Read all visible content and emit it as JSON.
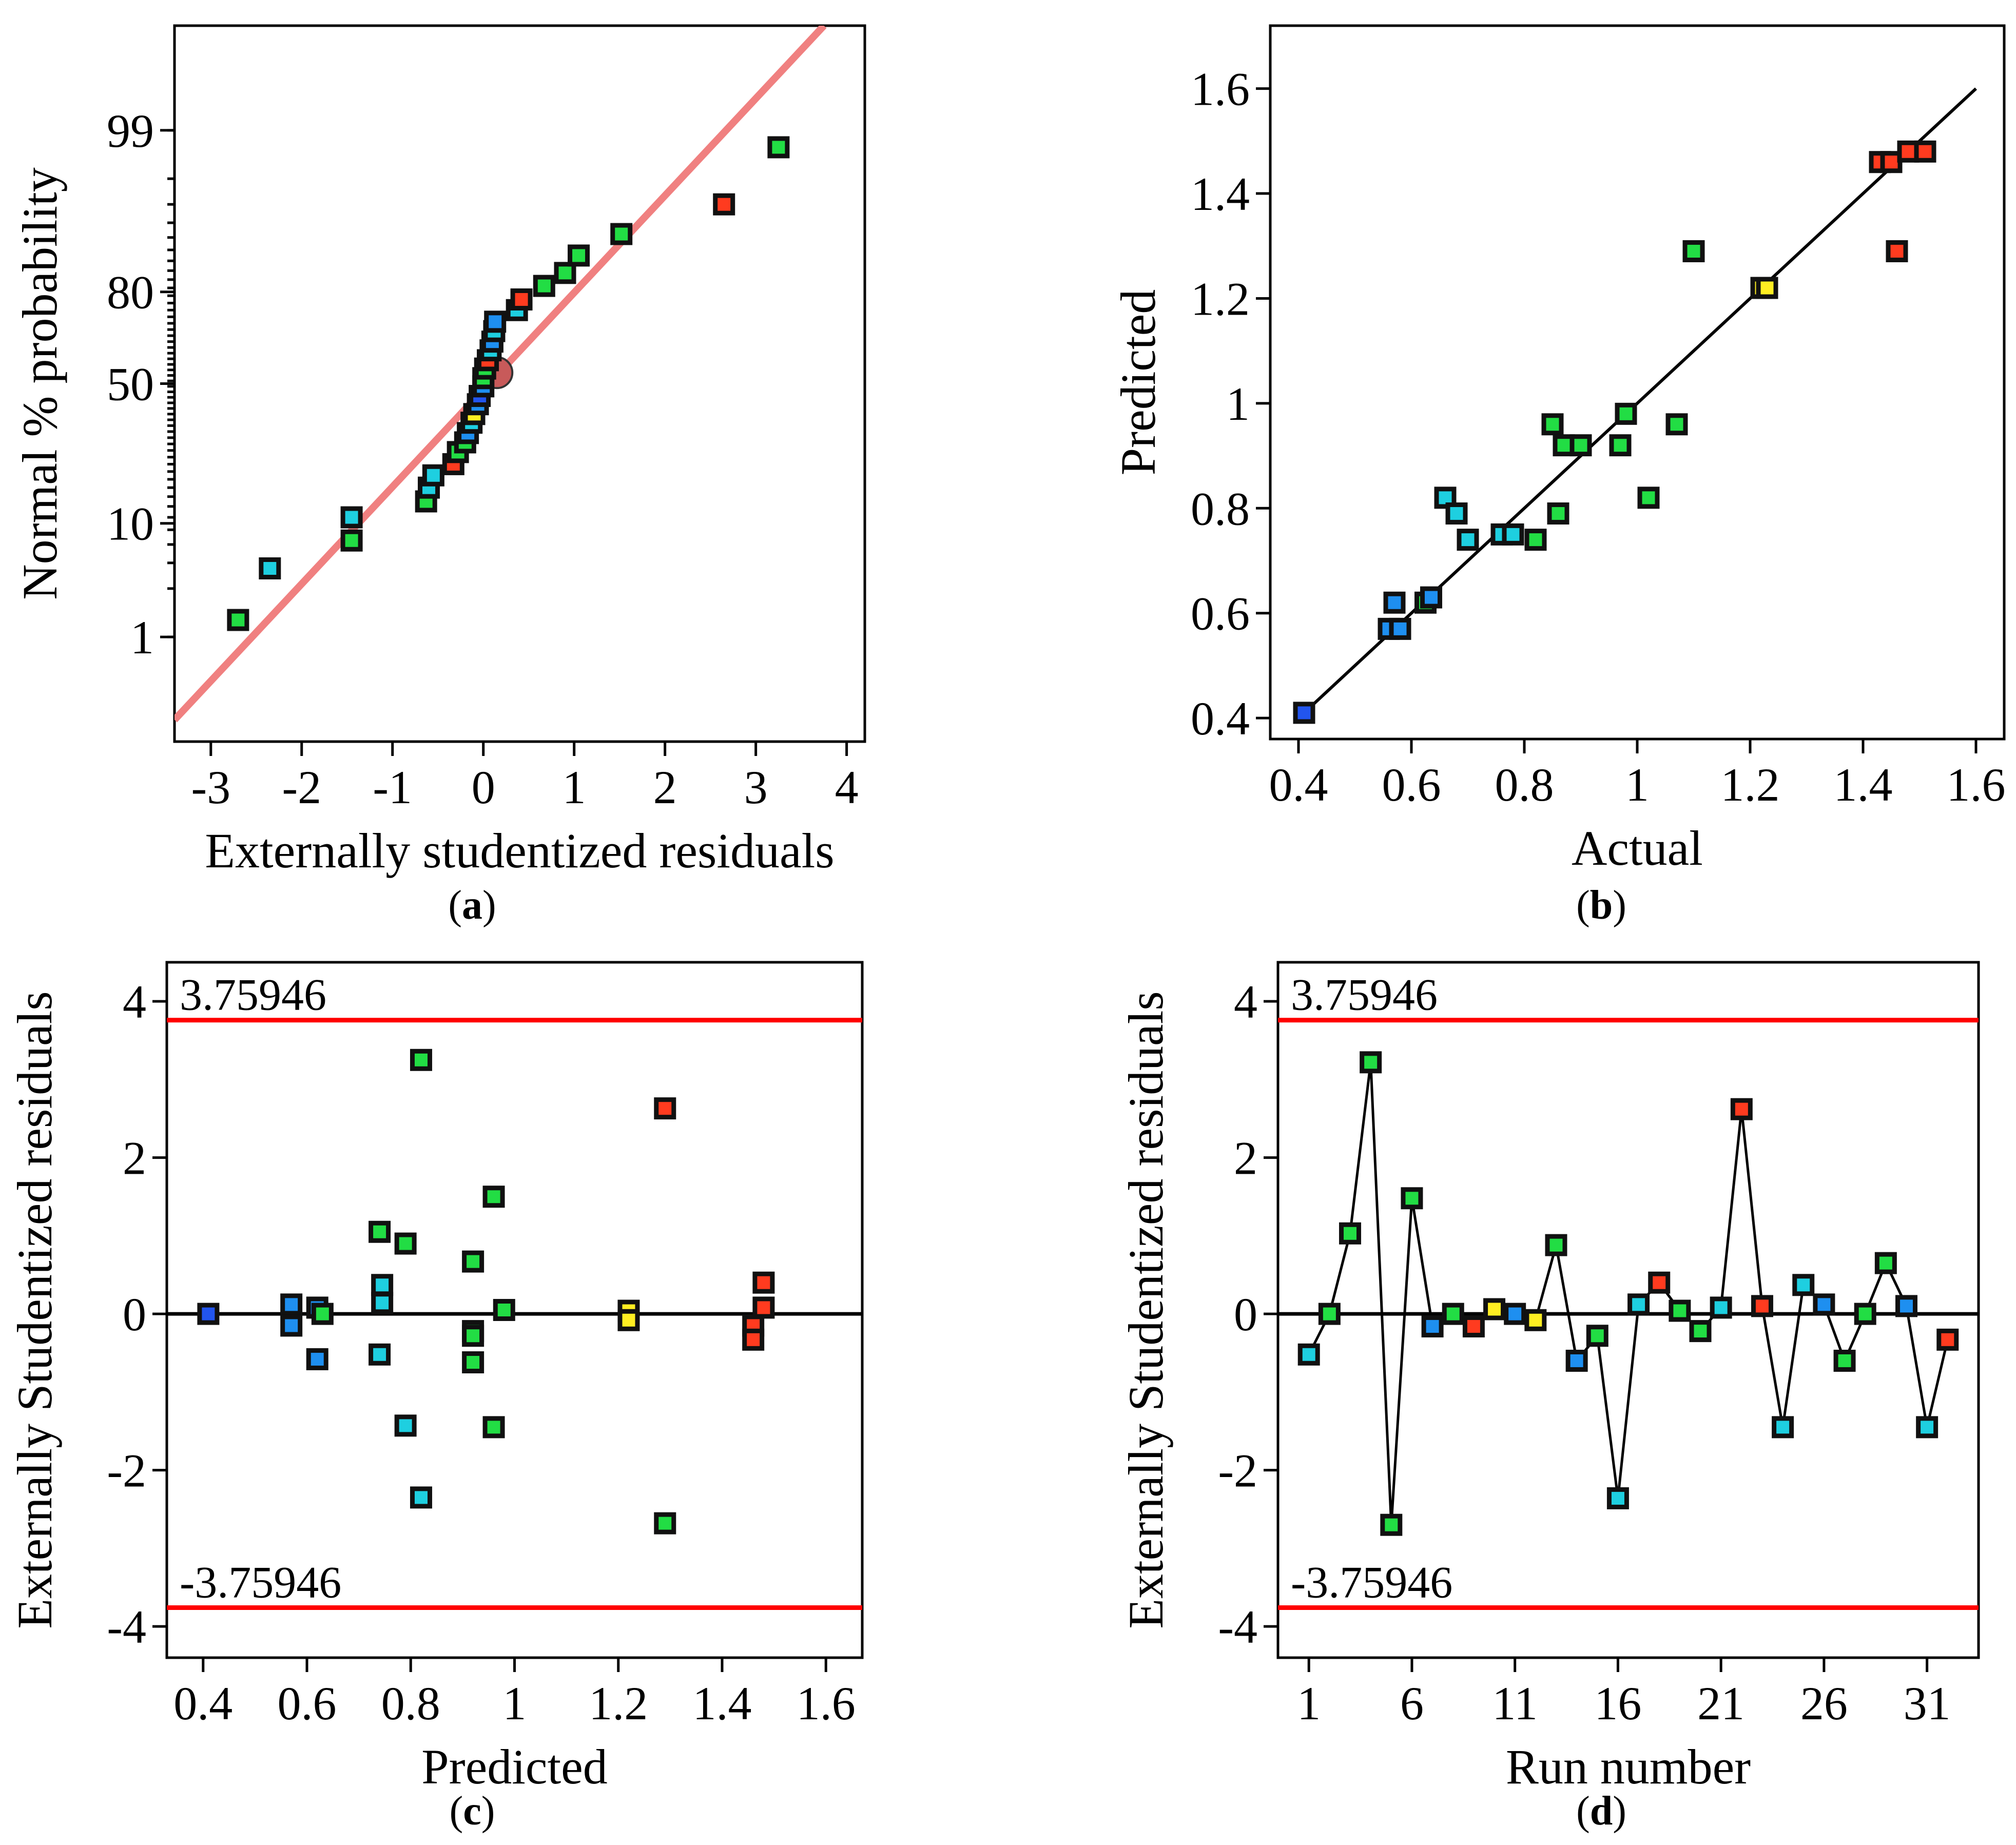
{
  "colors": {
    "ref_line_a": "#f08080",
    "limit_line": "#ff0000",
    "fit_line": "#000000"
  },
  "chart_data": [
    {
      "id": "a",
      "type": "scatter",
      "caption_letter": "a",
      "xlabel": "Externally studentized residuals",
      "ylabel": "Normal % probability",
      "xlim": [
        -3.4,
        4.2
      ],
      "xticks": [
        -3,
        -2,
        -1,
        0,
        1,
        2,
        3,
        4
      ],
      "yticks": [
        1,
        10,
        50,
        80,
        99
      ],
      "reference_line": [
        [
          -3.4,
          0.1
        ],
        [
          3.75,
          99.95
        ]
      ],
      "points": [
        {
          "x": -2.7,
          "y": 1.5,
          "c": "#22dd44"
        },
        {
          "x": -2.35,
          "y": 4.5,
          "c": "#1ecfe0"
        },
        {
          "x": -1.45,
          "y": 7.5,
          "c": "#22dd44"
        },
        {
          "x": -1.45,
          "y": 11.0,
          "c": "#1ecfe0"
        },
        {
          "x": -0.63,
          "y": 14.0,
          "c": "#22dd44"
        },
        {
          "x": -0.6,
          "y": 17.0,
          "c": "#1ecfe0"
        },
        {
          "x": -0.55,
          "y": 20.0,
          "c": "#1ecfe0"
        },
        {
          "x": -0.33,
          "y": 23.0,
          "c": "#ff3b1f"
        },
        {
          "x": -0.28,
          "y": 26.5,
          "c": "#22dd44"
        },
        {
          "x": -0.2,
          "y": 29.5,
          "c": "#22dd44"
        },
        {
          "x": -0.17,
          "y": 32.5,
          "c": "#1e8ff0"
        },
        {
          "x": -0.13,
          "y": 36.0,
          "c": "#1ecfe0"
        },
        {
          "x": -0.1,
          "y": 39.0,
          "c": "#ffee22"
        },
        {
          "x": -0.06,
          "y": 42.5,
          "c": "#1e8ff0"
        },
        {
          "x": -0.04,
          "y": 45.5,
          "c": "#2255ee"
        },
        {
          "x": 0.0,
          "y": 49.0,
          "c": "#1e8ff0"
        },
        {
          "x": 0.0,
          "y": 52.0,
          "c": "#22dd44"
        },
        {
          "x": 0.02,
          "y": 55.5,
          "c": "#22dd44"
        },
        {
          "x": 0.05,
          "y": 58.5,
          "c": "#ff3b1f"
        },
        {
          "x": 0.08,
          "y": 62.0,
          "c": "#1ecfe0"
        },
        {
          "x": 0.1,
          "y": 65.0,
          "c": "#1e8ff0"
        },
        {
          "x": 0.12,
          "y": 68.5,
          "c": "#1ecfe0"
        },
        {
          "x": 0.13,
          "y": 71.5,
          "c": "#1e8ff0"
        },
        {
          "x": 0.37,
          "y": 75.0,
          "c": "#1ecfe0"
        },
        {
          "x": 0.42,
          "y": 78.0,
          "c": "#ff3b1f"
        },
        {
          "x": 0.67,
          "y": 81.5,
          "c": "#22dd44"
        },
        {
          "x": 0.9,
          "y": 84.5,
          "c": "#22dd44"
        },
        {
          "x": 1.05,
          "y": 88.0,
          "c": "#22dd44"
        },
        {
          "x": 1.52,
          "y": 91.5,
          "c": "#22dd44"
        },
        {
          "x": 2.65,
          "y": 95.0,
          "c": "#ff3b1f"
        },
        {
          "x": 3.25,
          "y": 98.5,
          "c": "#22dd44"
        }
      ]
    },
    {
      "id": "b",
      "type": "scatter",
      "caption_letter": "b",
      "xlabel": "Actual",
      "ylabel": "Predicted",
      "xlim": [
        0.35,
        1.65
      ],
      "ylim": [
        0.36,
        1.72
      ],
      "xticks": [
        "0.4",
        "0.6",
        "0.8",
        "1",
        "1.2",
        "1.4",
        "1.6"
      ],
      "yticks": [
        "0.4",
        "0.6",
        "0.8",
        "1",
        "1.2",
        "1.4",
        "1.6"
      ],
      "fit_line": [
        [
          0.41,
          0.41
        ],
        [
          1.6,
          1.6
        ]
      ],
      "points": [
        {
          "x": 0.41,
          "y": 0.41,
          "c": "#2255ee"
        },
        {
          "x": 0.56,
          "y": 0.57,
          "c": "#1e8ff0"
        },
        {
          "x": 0.58,
          "y": 0.57,
          "c": "#1e8ff0"
        },
        {
          "x": 0.57,
          "y": 0.62,
          "c": "#1e8ff0"
        },
        {
          "x": 0.625,
          "y": 0.62,
          "c": "#22dd44"
        },
        {
          "x": 0.635,
          "y": 0.63,
          "c": "#1e8ff0"
        },
        {
          "x": 0.66,
          "y": 0.82,
          "c": "#1ecfe0"
        },
        {
          "x": 0.68,
          "y": 0.79,
          "c": "#1ecfe0"
        },
        {
          "x": 0.7,
          "y": 0.74,
          "c": "#1ecfe0"
        },
        {
          "x": 0.76,
          "y": 0.75,
          "c": "#1ecfe0"
        },
        {
          "x": 0.78,
          "y": 0.75,
          "c": "#1ecfe0"
        },
        {
          "x": 0.82,
          "y": 0.74,
          "c": "#22dd44"
        },
        {
          "x": 0.86,
          "y": 0.79,
          "c": "#22dd44"
        },
        {
          "x": 0.85,
          "y": 0.96,
          "c": "#22dd44"
        },
        {
          "x": 0.87,
          "y": 0.92,
          "c": "#22dd44"
        },
        {
          "x": 0.9,
          "y": 0.92,
          "c": "#22dd44"
        },
        {
          "x": 0.97,
          "y": 0.92,
          "c": "#22dd44"
        },
        {
          "x": 0.98,
          "y": 0.98,
          "c": "#22dd44"
        },
        {
          "x": 1.02,
          "y": 0.82,
          "c": "#22dd44"
        },
        {
          "x": 1.07,
          "y": 0.96,
          "c": "#22dd44"
        },
        {
          "x": 1.1,
          "y": 1.29,
          "c": "#22dd44"
        },
        {
          "x": 1.22,
          "y": 1.22,
          "c": "#ffee22"
        },
        {
          "x": 1.23,
          "y": 1.22,
          "c": "#ffee22"
        },
        {
          "x": 1.43,
          "y": 1.46,
          "c": "#ff3b1f"
        },
        {
          "x": 1.45,
          "y": 1.46,
          "c": "#ff3b1f"
        },
        {
          "x": 1.46,
          "y": 1.29,
          "c": "#ff3b1f"
        },
        {
          "x": 1.48,
          "y": 1.48,
          "c": "#ff3b1f"
        },
        {
          "x": 1.51,
          "y": 1.48,
          "c": "#ff3b1f"
        }
      ]
    },
    {
      "id": "c",
      "type": "scatter",
      "caption_letter": "c",
      "xlabel": "Predicted",
      "ylabel": "Externally Studentized residuals",
      "xlim": [
        0.33,
        1.67
      ],
      "ylim": [
        -4.4,
        4.5
      ],
      "xticks": [
        "0.4",
        "0.6",
        "0.8",
        "1",
        "1.2",
        "1.4",
        "1.6"
      ],
      "yticks": [
        "-4",
        "-2",
        "0",
        "2",
        "4"
      ],
      "upper_limit": 3.75946,
      "lower_limit": -3.75946,
      "upper_label": "3.75946",
      "lower_label": "-3.75946",
      "points": [
        {
          "x": 0.41,
          "y": 0.0,
          "c": "#2255ee"
        },
        {
          "x": 0.57,
          "y": 0.12,
          "c": "#1e8ff0"
        },
        {
          "x": 0.57,
          "y": -0.15,
          "c": "#1e8ff0"
        },
        {
          "x": 0.62,
          "y": 0.08,
          "c": "#1e8ff0"
        },
        {
          "x": 0.63,
          "y": 0.0,
          "c": "#22dd44"
        },
        {
          "x": 0.62,
          "y": -0.58,
          "c": "#1e8ff0"
        },
        {
          "x": 0.74,
          "y": 1.05,
          "c": "#22dd44"
        },
        {
          "x": 0.745,
          "y": 0.37,
          "c": "#1ecfe0"
        },
        {
          "x": 0.745,
          "y": 0.14,
          "c": "#1ecfe0"
        },
        {
          "x": 0.74,
          "y": -0.52,
          "c": "#1ecfe0"
        },
        {
          "x": 0.79,
          "y": 0.9,
          "c": "#22dd44"
        },
        {
          "x": 0.79,
          "y": -1.43,
          "c": "#1ecfe0"
        },
        {
          "x": 0.82,
          "y": 3.25,
          "c": "#22dd44"
        },
        {
          "x": 0.82,
          "y": -2.35,
          "c": "#1ecfe0"
        },
        {
          "x": 0.92,
          "y": 0.67,
          "c": "#22dd44"
        },
        {
          "x": 0.92,
          "y": -0.22,
          "c": "#22dd44"
        },
        {
          "x": 0.92,
          "y": -0.28,
          "c": "#22dd44"
        },
        {
          "x": 0.92,
          "y": -0.62,
          "c": "#22dd44"
        },
        {
          "x": 0.96,
          "y": 1.5,
          "c": "#22dd44"
        },
        {
          "x": 0.96,
          "y": -1.45,
          "c": "#22dd44"
        },
        {
          "x": 0.98,
          "y": 0.05,
          "c": "#22dd44"
        },
        {
          "x": 1.22,
          "y": 0.04,
          "c": "#ffee22"
        },
        {
          "x": 1.22,
          "y": -0.08,
          "c": "#ffee22"
        },
        {
          "x": 1.29,
          "y": 2.63,
          "c": "#ff3b1f"
        },
        {
          "x": 1.29,
          "y": -2.68,
          "c": "#22dd44"
        },
        {
          "x": 1.46,
          "y": -0.15,
          "c": "#ff3b1f"
        },
        {
          "x": 1.46,
          "y": -0.33,
          "c": "#ff3b1f"
        },
        {
          "x": 1.48,
          "y": 0.4,
          "c": "#ff3b1f"
        },
        {
          "x": 1.48,
          "y": 0.08,
          "c": "#ff3b1f"
        }
      ]
    },
    {
      "id": "d",
      "type": "line",
      "caption_letter": "d",
      "xlabel": "Run number",
      "ylabel": "Externally Studentized residuals",
      "xlim": [
        -0.5,
        33.5
      ],
      "ylim": [
        -4.4,
        4.5
      ],
      "xticks": [
        "1",
        "6",
        "11",
        "16",
        "21",
        "26",
        "31"
      ],
      "yticks": [
        "-4",
        "-2",
        "0",
        "2",
        "4"
      ],
      "upper_limit": 3.75946,
      "lower_limit": -3.75946,
      "upper_label": "3.75946",
      "lower_label": "-3.75946",
      "points": [
        {
          "x": 1,
          "y": -0.52,
          "c": "#1ecfe0"
        },
        {
          "x": 2,
          "y": 0.0,
          "c": "#22dd44"
        },
        {
          "x": 3,
          "y": 1.03,
          "c": "#22dd44"
        },
        {
          "x": 4,
          "y": 3.22,
          "c": "#22dd44"
        },
        {
          "x": 5,
          "y": -2.7,
          "c": "#22dd44"
        },
        {
          "x": 6,
          "y": 1.48,
          "c": "#22dd44"
        },
        {
          "x": 7,
          "y": -0.16,
          "c": "#1e8ff0"
        },
        {
          "x": 8,
          "y": 0.0,
          "c": "#22dd44"
        },
        {
          "x": 9,
          "y": -0.16,
          "c": "#ff3b1f"
        },
        {
          "x": 10,
          "y": 0.06,
          "c": "#ffee22"
        },
        {
          "x": 11,
          "y": 0.0,
          "c": "#1e8ff0"
        },
        {
          "x": 12,
          "y": -0.08,
          "c": "#ffee22"
        },
        {
          "x": 13,
          "y": 0.88,
          "c": "#22dd44"
        },
        {
          "x": 14,
          "y": -0.6,
          "c": "#1e8ff0"
        },
        {
          "x": 15,
          "y": -0.28,
          "c": "#22dd44"
        },
        {
          "x": 16,
          "y": -2.36,
          "c": "#1ecfe0"
        },
        {
          "x": 17,
          "y": 0.12,
          "c": "#1ecfe0"
        },
        {
          "x": 18,
          "y": 0.4,
          "c": "#ff3b1f"
        },
        {
          "x": 19,
          "y": 0.04,
          "c": "#22dd44"
        },
        {
          "x": 20,
          "y": -0.22,
          "c": "#22dd44"
        },
        {
          "x": 21,
          "y": 0.08,
          "c": "#1ecfe0"
        },
        {
          "x": 22,
          "y": 2.62,
          "c": "#ff3b1f"
        },
        {
          "x": 23,
          "y": 0.1,
          "c": "#ff3b1f"
        },
        {
          "x": 24,
          "y": -1.45,
          "c": "#1ecfe0"
        },
        {
          "x": 25,
          "y": 0.37,
          "c": "#1ecfe0"
        },
        {
          "x": 26,
          "y": 0.12,
          "c": "#1e8ff0"
        },
        {
          "x": 27,
          "y": -0.6,
          "c": "#22dd44"
        },
        {
          "x": 28,
          "y": 0.0,
          "c": "#22dd44"
        },
        {
          "x": 29,
          "y": 0.65,
          "c": "#22dd44"
        },
        {
          "x": 30,
          "y": 0.1,
          "c": "#1e8ff0"
        },
        {
          "x": 31,
          "y": -1.45,
          "c": "#1ecfe0"
        },
        {
          "x": 32,
          "y": -0.33,
          "c": "#ff3b1f"
        }
      ]
    }
  ]
}
